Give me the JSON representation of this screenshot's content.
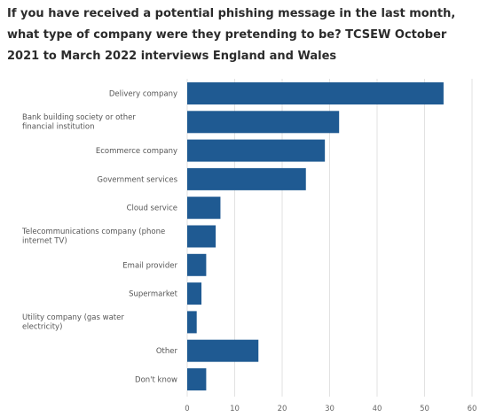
{
  "chart_data": {
    "type": "bar",
    "orientation": "horizontal",
    "title": "If you have received a potential phishing message in the last month, what type of company were they pretending to be? TCSEW October 2021 to March 2022 interviews England and Wales",
    "categories": [
      "Delivery company",
      "Bank building society or other financial institution",
      "Ecommerce company",
      "Government services",
      "Cloud service",
      "Telecommunications company (phone internet TV)",
      "Email provider",
      "Supermarket",
      "Utility company (gas water electricity)",
      "Other",
      "Don't know"
    ],
    "values": [
      54,
      32,
      29,
      25,
      7,
      6,
      4,
      3,
      2,
      15,
      4
    ],
    "xlim": [
      0,
      60
    ],
    "xticks": [
      0,
      10,
      20,
      30,
      40,
      50,
      60
    ],
    "grid": true,
    "legend": "none",
    "bar_color": "#1f5a92"
  }
}
